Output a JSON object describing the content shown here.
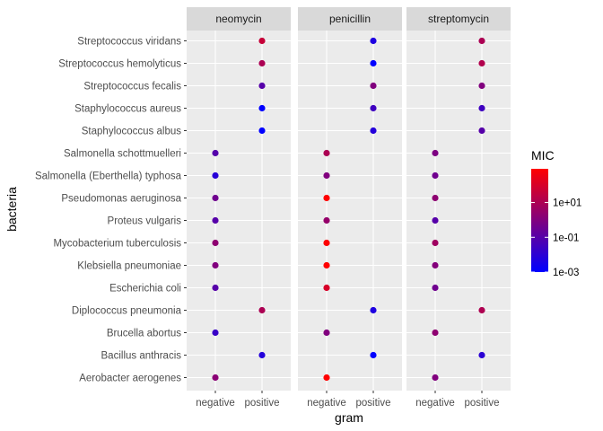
{
  "chart_data": {
    "type": "scatter",
    "facet_by": "antibiotic",
    "facets": [
      "neomycin",
      "penicillin",
      "streptomycin"
    ],
    "xlabel": "gram",
    "ylabel": "bacteria",
    "x_categories": [
      "negative",
      "positive"
    ],
    "y_categories": [
      "Aerobacter aerogenes",
      "Bacillus anthracis",
      "Brucella abortus",
      "Diplococcus pneumonia",
      "Escherichia coli",
      "Klebsiella pneumoniae",
      "Mycobacterium tuberculosis",
      "Proteus vulgaris",
      "Pseudomonas aeruginosa",
      "Salmonella (Eberthella) typhosa",
      "Salmonella schottmuelleri",
      "Staphylococcus albus",
      "Staphylococcus aureus",
      "Streptococcus fecalis",
      "Streptococcus hemolyticus",
      "Streptococcus viridans"
    ],
    "color_legend": {
      "title": "MIC",
      "scale": "log10",
      "low_color": "#0000ff",
      "high_color": "#ff0000",
      "range": [
        0.001,
        870
      ],
      "breaks": [
        0.001,
        0.1,
        10
      ],
      "labels": [
        "1e-03",
        "1e-01",
        "1e+01"
      ]
    },
    "points": [
      {
        "facet": "neomycin",
        "bacteria": "Aerobacter aerogenes",
        "gram": "negative",
        "mic": 1.6
      },
      {
        "facet": "neomycin",
        "bacteria": "Bacillus anthracis",
        "gram": "positive",
        "mic": 0.007
      },
      {
        "facet": "neomycin",
        "bacteria": "Brucella abortus",
        "gram": "negative",
        "mic": 0.02
      },
      {
        "facet": "neomycin",
        "bacteria": "Diplococcus pneumonia",
        "gram": "positive",
        "mic": 10
      },
      {
        "facet": "neomycin",
        "bacteria": "Escherichia coli",
        "gram": "negative",
        "mic": 0.1
      },
      {
        "facet": "neomycin",
        "bacteria": "Klebsiella pneumoniae",
        "gram": "negative",
        "mic": 1
      },
      {
        "facet": "neomycin",
        "bacteria": "Mycobacterium tuberculosis",
        "gram": "negative",
        "mic": 2
      },
      {
        "facet": "neomycin",
        "bacteria": "Proteus vulgaris",
        "gram": "negative",
        "mic": 0.1
      },
      {
        "facet": "neomycin",
        "bacteria": "Pseudomonas aeruginosa",
        "gram": "negative",
        "mic": 0.4
      },
      {
        "facet": "neomycin",
        "bacteria": "Salmonella (Eberthella) typhosa",
        "gram": "negative",
        "mic": 0.008
      },
      {
        "facet": "neomycin",
        "bacteria": "Salmonella schottmuelleri",
        "gram": "negative",
        "mic": 0.09
      },
      {
        "facet": "neomycin",
        "bacteria": "Staphylococcus albus",
        "gram": "positive",
        "mic": 0.001
      },
      {
        "facet": "neomycin",
        "bacteria": "Staphylococcus aureus",
        "gram": "positive",
        "mic": 0.001
      },
      {
        "facet": "neomycin",
        "bacteria": "Streptococcus fecalis",
        "gram": "positive",
        "mic": 0.1
      },
      {
        "facet": "neomycin",
        "bacteria": "Streptococcus hemolyticus",
        "gram": "positive",
        "mic": 10
      },
      {
        "facet": "neomycin",
        "bacteria": "Streptococcus viridans",
        "gram": "positive",
        "mic": 40
      },
      {
        "facet": "penicillin",
        "bacteria": "Aerobacter aerogenes",
        "gram": "negative",
        "mic": 870
      },
      {
        "facet": "penicillin",
        "bacteria": "Bacillus anthracis",
        "gram": "positive",
        "mic": 0.001
      },
      {
        "facet": "penicillin",
        "bacteria": "Brucella abortus",
        "gram": "negative",
        "mic": 1
      },
      {
        "facet": "penicillin",
        "bacteria": "Diplococcus pneumonia",
        "gram": "positive",
        "mic": 0.005
      },
      {
        "facet": "penicillin",
        "bacteria": "Escherichia coli",
        "gram": "negative",
        "mic": 100
      },
      {
        "facet": "penicillin",
        "bacteria": "Klebsiella pneumoniae",
        "gram": "negative",
        "mic": 850
      },
      {
        "facet": "penicillin",
        "bacteria": "Mycobacterium tuberculosis",
        "gram": "negative",
        "mic": 800
      },
      {
        "facet": "penicillin",
        "bacteria": "Proteus vulgaris",
        "gram": "negative",
        "mic": 3
      },
      {
        "facet": "penicillin",
        "bacteria": "Pseudomonas aeruginosa",
        "gram": "negative",
        "mic": 850
      },
      {
        "facet": "penicillin",
        "bacteria": "Salmonella (Eberthella) typhosa",
        "gram": "negative",
        "mic": 1
      },
      {
        "facet": "penicillin",
        "bacteria": "Salmonella schottmuelleri",
        "gram": "negative",
        "mic": 10
      },
      {
        "facet": "penicillin",
        "bacteria": "Staphylococcus albus",
        "gram": "positive",
        "mic": 0.007
      },
      {
        "facet": "penicillin",
        "bacteria": "Staphylococcus aureus",
        "gram": "positive",
        "mic": 0.03
      },
      {
        "facet": "penicillin",
        "bacteria": "Streptococcus fecalis",
        "gram": "positive",
        "mic": 1
      },
      {
        "facet": "penicillin",
        "bacteria": "Streptococcus hemolyticus",
        "gram": "positive",
        "mic": 0.001
      },
      {
        "facet": "penicillin",
        "bacteria": "Streptococcus viridans",
        "gram": "positive",
        "mic": 0.005
      },
      {
        "facet": "streptomycin",
        "bacteria": "Aerobacter aerogenes",
        "gram": "negative",
        "mic": 1
      },
      {
        "facet": "streptomycin",
        "bacteria": "Bacillus anthracis",
        "gram": "positive",
        "mic": 0.01
      },
      {
        "facet": "streptomycin",
        "bacteria": "Brucella abortus",
        "gram": "negative",
        "mic": 2
      },
      {
        "facet": "streptomycin",
        "bacteria": "Diplococcus pneumonia",
        "gram": "positive",
        "mic": 11
      },
      {
        "facet": "streptomycin",
        "bacteria": "Escherichia coli",
        "gram": "negative",
        "mic": 0.4
      },
      {
        "facet": "streptomycin",
        "bacteria": "Klebsiella pneumoniae",
        "gram": "negative",
        "mic": 1.2
      },
      {
        "facet": "streptomycin",
        "bacteria": "Mycobacterium tuberculosis",
        "gram": "negative",
        "mic": 5
      },
      {
        "facet": "streptomycin",
        "bacteria": "Proteus vulgaris",
        "gram": "negative",
        "mic": 0.1
      },
      {
        "facet": "streptomycin",
        "bacteria": "Pseudomonas aeruginosa",
        "gram": "negative",
        "mic": 2
      },
      {
        "facet": "streptomycin",
        "bacteria": "Salmonella (Eberthella) typhosa",
        "gram": "negative",
        "mic": 0.4
      },
      {
        "facet": "streptomycin",
        "bacteria": "Salmonella schottmuelleri",
        "gram": "negative",
        "mic": 0.8
      },
      {
        "facet": "streptomycin",
        "bacteria": "Staphylococcus albus",
        "gram": "positive",
        "mic": 0.1
      },
      {
        "facet": "streptomycin",
        "bacteria": "Staphylococcus aureus",
        "gram": "positive",
        "mic": 0.03
      },
      {
        "facet": "streptomycin",
        "bacteria": "Streptococcus fecalis",
        "gram": "positive",
        "mic": 1
      },
      {
        "facet": "streptomycin",
        "bacteria": "Streptococcus hemolyticus",
        "gram": "positive",
        "mic": 14
      },
      {
        "facet": "streptomycin",
        "bacteria": "Streptococcus viridans",
        "gram": "positive",
        "mic": 10
      }
    ],
    "grid": true,
    "legend_position": "right",
    "colors": {
      "panel_background": "#ebebeb",
      "strip_background": "#d9d9d9",
      "gridline": "#ffffff"
    }
  }
}
